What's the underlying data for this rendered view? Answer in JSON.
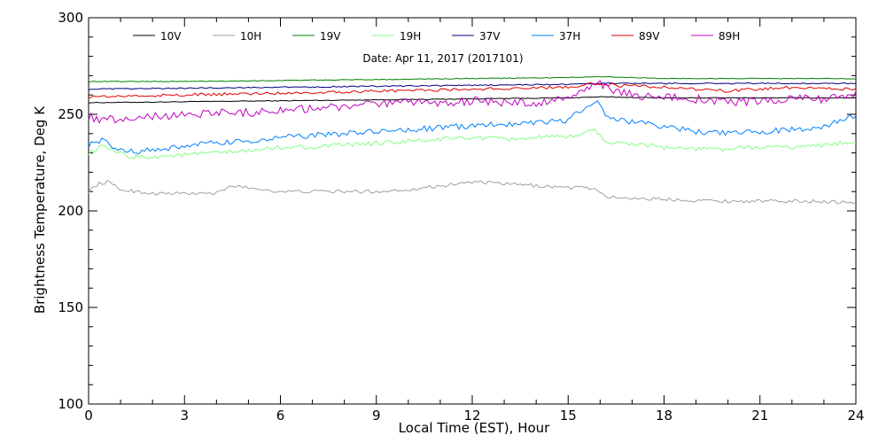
{
  "chart_data": {
    "type": "line",
    "annotation": "Date: Apr 11, 2017 (2017101)",
    "xlabel": "Local Time (EST), Hour",
    "ylabel": "Brightness Temperature, Deg K",
    "xlim": [
      0,
      24
    ],
    "ylim": [
      100,
      300
    ],
    "x_ticks": [
      0,
      3,
      6,
      9,
      12,
      15,
      18,
      21,
      24
    ],
    "y_ticks": [
      100,
      150,
      200,
      250,
      300
    ],
    "grid": false,
    "legend_position": "top",
    "series": [
      {
        "name": "10V",
        "color": "#000000",
        "noise": 0.2,
        "points": [
          [
            0,
            256
          ],
          [
            3,
            256.5
          ],
          [
            6,
            257
          ],
          [
            9,
            257.5
          ],
          [
            12,
            258
          ],
          [
            15,
            258.5
          ],
          [
            16,
            259
          ],
          [
            18,
            258.5
          ],
          [
            21,
            258.5
          ],
          [
            24,
            258.5
          ]
        ]
      },
      {
        "name": "10H",
        "color": "#a0a0a0",
        "noise": 0.9,
        "points": [
          [
            0,
            210
          ],
          [
            0.3,
            214
          ],
          [
            0.6,
            215
          ],
          [
            1,
            211
          ],
          [
            2,
            209
          ],
          [
            3,
            209
          ],
          [
            4,
            209
          ],
          [
            4.5,
            213
          ],
          [
            5,
            212
          ],
          [
            6,
            210
          ],
          [
            9,
            210
          ],
          [
            10,
            211
          ],
          [
            11,
            213
          ],
          [
            12,
            215
          ],
          [
            13,
            214
          ],
          [
            14,
            213
          ],
          [
            15,
            212
          ],
          [
            15.7,
            212
          ],
          [
            16.3,
            207
          ],
          [
            18,
            206
          ],
          [
            20,
            205
          ],
          [
            21,
            205
          ],
          [
            22,
            205
          ],
          [
            23,
            205
          ],
          [
            24,
            204
          ]
        ]
      },
      {
        "name": "19V",
        "color": "#008000",
        "noise": 0.2,
        "points": [
          [
            0,
            267
          ],
          [
            3,
            267
          ],
          [
            6,
            267.5
          ],
          [
            9,
            268
          ],
          [
            12,
            268.5
          ],
          [
            15,
            269
          ],
          [
            16,
            269.5
          ],
          [
            18,
            268.5
          ],
          [
            21,
            268.5
          ],
          [
            24,
            268.5
          ]
        ]
      },
      {
        "name": "19H",
        "color": "#80ff80",
        "noise": 1.2,
        "points": [
          [
            0,
            230
          ],
          [
            0.4,
            233
          ],
          [
            0.7,
            232
          ],
          [
            1.2,
            228
          ],
          [
            2,
            228
          ],
          [
            3,
            229
          ],
          [
            4,
            230
          ],
          [
            5,
            231
          ],
          [
            6,
            233
          ],
          [
            7,
            233
          ],
          [
            8,
            234
          ],
          [
            9,
            235
          ],
          [
            10,
            236
          ],
          [
            11,
            237
          ],
          [
            12,
            238
          ],
          [
            13,
            237
          ],
          [
            14,
            238
          ],
          [
            15,
            238
          ],
          [
            15.8,
            242
          ],
          [
            16.3,
            235
          ],
          [
            17,
            235
          ],
          [
            18,
            233
          ],
          [
            19,
            232
          ],
          [
            20,
            232
          ],
          [
            21,
            233
          ],
          [
            22,
            233
          ],
          [
            23,
            234
          ],
          [
            24,
            236
          ]
        ]
      },
      {
        "name": "37V",
        "color": "#000080",
        "noise": 0.3,
        "points": [
          [
            0,
            263
          ],
          [
            3,
            263.5
          ],
          [
            6,
            264
          ],
          [
            9,
            264.5
          ],
          [
            12,
            265
          ],
          [
            15,
            265.5
          ],
          [
            16,
            266
          ],
          [
            18,
            266
          ],
          [
            21,
            266
          ],
          [
            24,
            266
          ]
        ]
      },
      {
        "name": "37H",
        "color": "#0080ff",
        "noise": 1.5,
        "points": [
          [
            0,
            234
          ],
          [
            0.4,
            237
          ],
          [
            0.8,
            232
          ],
          [
            1.5,
            231
          ],
          [
            2.5,
            232
          ],
          [
            3,
            234
          ],
          [
            4,
            235
          ],
          [
            5,
            236
          ],
          [
            6,
            238
          ],
          [
            7,
            239
          ],
          [
            8,
            240
          ],
          [
            9,
            241
          ],
          [
            10,
            242
          ],
          [
            11,
            243
          ],
          [
            12,
            244
          ],
          [
            13,
            245
          ],
          [
            14,
            246
          ],
          [
            15,
            247
          ],
          [
            15.4,
            252
          ],
          [
            15.9,
            256
          ],
          [
            16.3,
            248
          ],
          [
            17,
            246
          ],
          [
            18,
            244
          ],
          [
            19,
            241
          ],
          [
            20,
            240
          ],
          [
            21,
            241
          ],
          [
            22,
            242
          ],
          [
            23,
            244
          ],
          [
            24,
            249
          ]
        ]
      },
      {
        "name": "89V",
        "color": "#e00000",
        "noise": 0.8,
        "points": [
          [
            0,
            259
          ],
          [
            3,
            260
          ],
          [
            6,
            261
          ],
          [
            9,
            262
          ],
          [
            12,
            263
          ],
          [
            15,
            264
          ],
          [
            15.8,
            266
          ],
          [
            16.5,
            265
          ],
          [
            18,
            264
          ],
          [
            20,
            262
          ],
          [
            21,
            263
          ],
          [
            22,
            264
          ],
          [
            24,
            263
          ]
        ]
      },
      {
        "name": "89H",
        "color": "#c000c0",
        "noise": 2.2,
        "points": [
          [
            0,
            249
          ],
          [
            0.5,
            247
          ],
          [
            1,
            248
          ],
          [
            2,
            249
          ],
          [
            3,
            250
          ],
          [
            4,
            251
          ],
          [
            5,
            251
          ],
          [
            6,
            252
          ],
          [
            7,
            253
          ],
          [
            8,
            254
          ],
          [
            9,
            255
          ],
          [
            10,
            256
          ],
          [
            11,
            256
          ],
          [
            12,
            257
          ],
          [
            13,
            256
          ],
          [
            14,
            256
          ],
          [
            15,
            258
          ],
          [
            15.9,
            266
          ],
          [
            16.5,
            262
          ],
          [
            17,
            260
          ],
          [
            18,
            259
          ],
          [
            19,
            258
          ],
          [
            20,
            256
          ],
          [
            21,
            257
          ],
          [
            22,
            258
          ],
          [
            23,
            258
          ],
          [
            24,
            260
          ]
        ]
      }
    ]
  }
}
